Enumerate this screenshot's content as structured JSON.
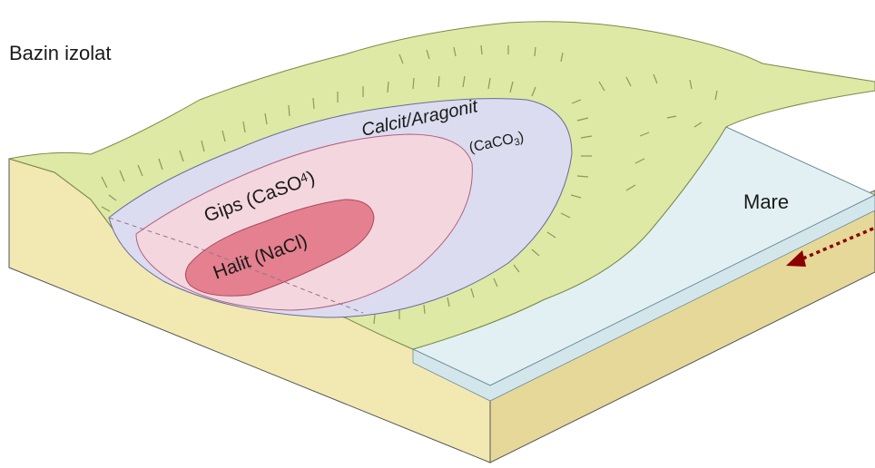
{
  "labels": {
    "title": "Bazin izolat",
    "calcit": "Calcit/Aragonit",
    "calcit_formula": "(CaCO",
    "calcit_sub": "3",
    "calcit_close": ")",
    "gips": "Gips (CaSO",
    "gips_sub": "4",
    "gips_close": ")",
    "halit": "Halit (NaCl)",
    "mare": "Mare"
  },
  "colors": {
    "land_top": "#dde9a4",
    "land_side": "#f2e8b2",
    "land_side_dark": "#e6d898",
    "calcit_zone": "#dcdcf0",
    "gips_zone": "#f4d6df",
    "halit_zone": "#e4808f",
    "sea": "#e3f0f3",
    "sea_side": "#d3e6ec",
    "arrow": "#8b0000",
    "outline": "#555555"
  },
  "icons": {
    "inflow_arrow": "dotted-arrow-left-icon"
  }
}
